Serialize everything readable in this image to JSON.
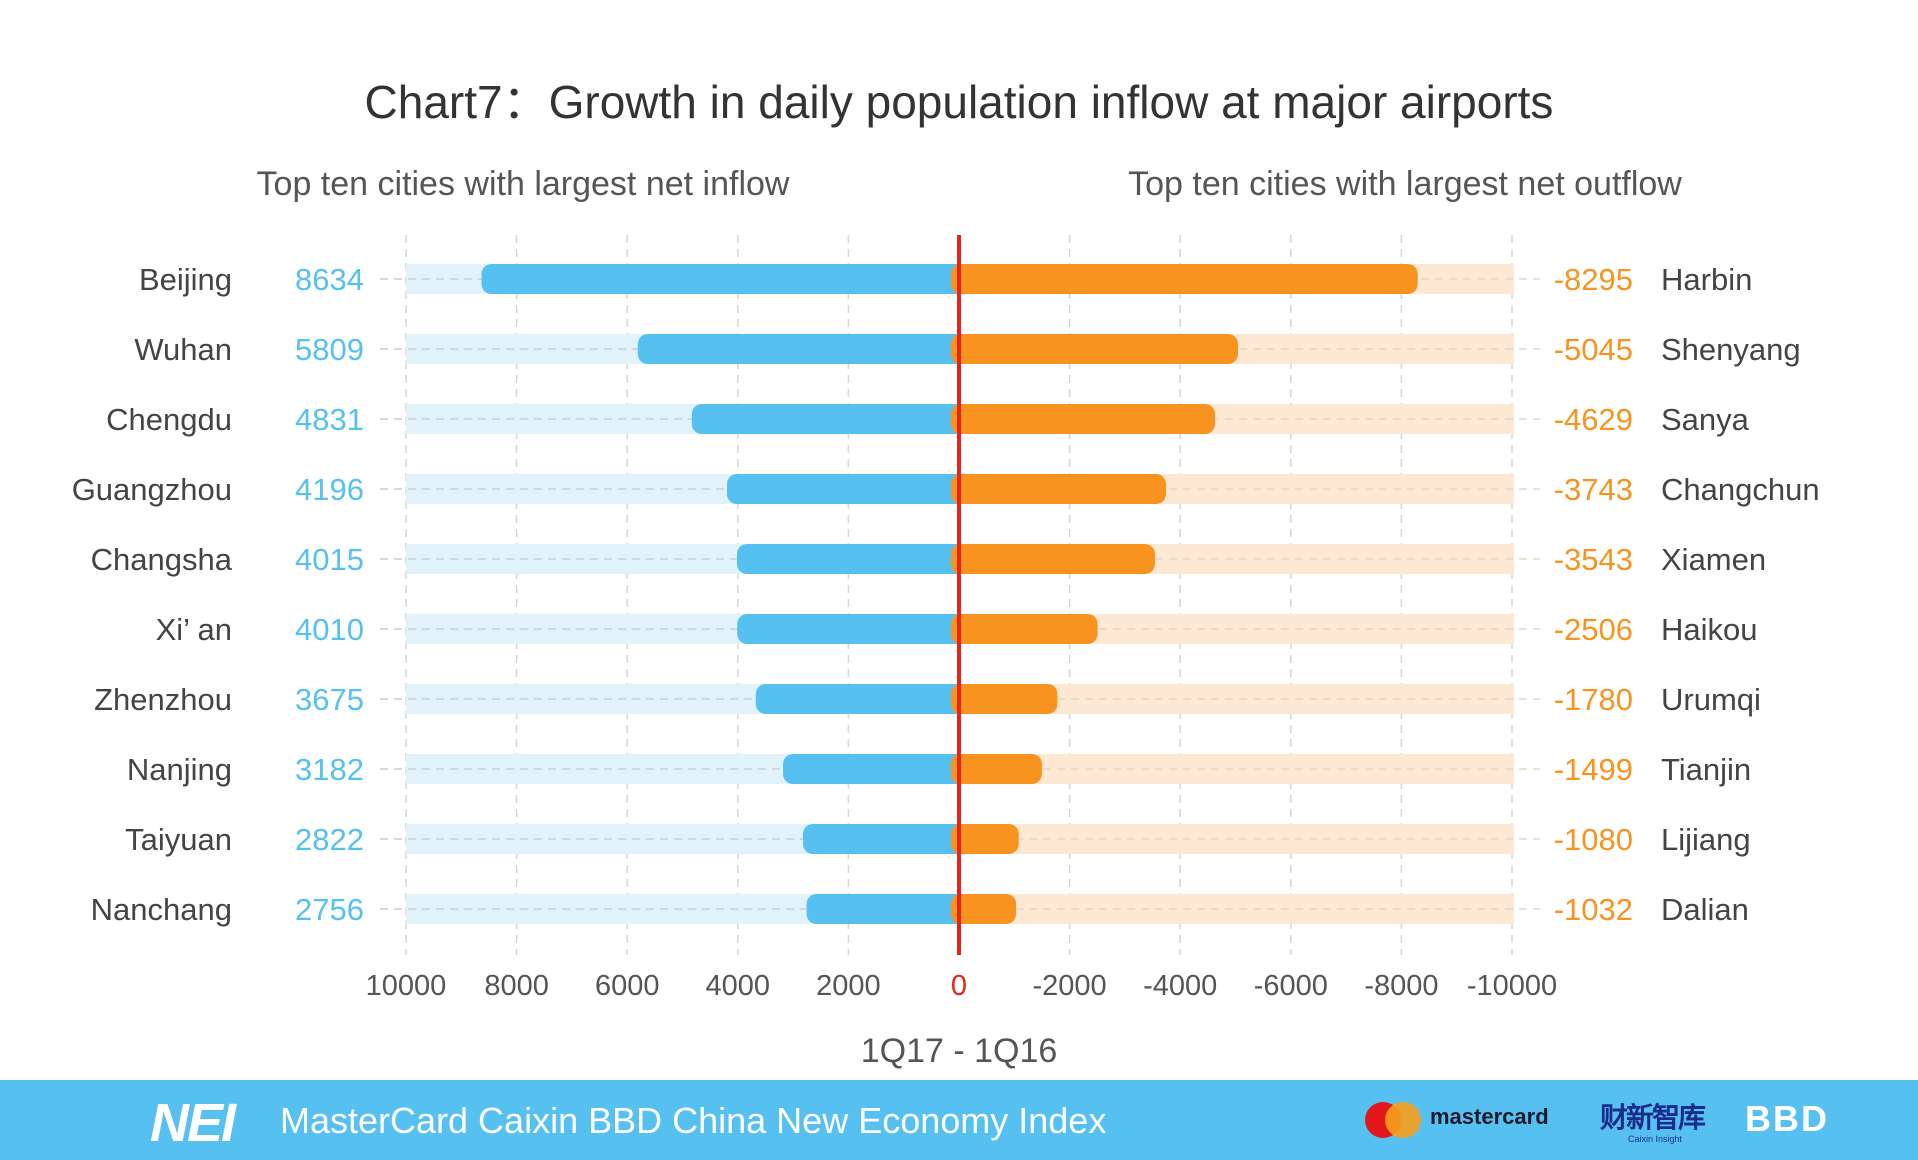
{
  "chart_data": {
    "type": "bar",
    "title": "Chart7：Growth in daily population inflow at major airports",
    "left_subtitle": "Top ten cities with largest net inflow",
    "right_subtitle": "Top ten cities with largest net outflow",
    "xlabel": "1Q17 - 1Q16",
    "xlim": [
      10000,
      -10000
    ],
    "x_ticks": [
      "10000",
      "8000",
      "6000",
      "4000",
      "2000",
      "0",
      "-2000",
      "-4000",
      "-6000",
      "-8000",
      "-10000"
    ],
    "grid": true,
    "inflow": {
      "categories": [
        "Beijing",
        "Wuhan",
        "Chengdu",
        "Guangzhou",
        "Changsha",
        "Xi’ an",
        "Zhenzhou",
        "Nanjing",
        "Taiyuan",
        "Nanchang"
      ],
      "values": [
        8634,
        5809,
        4831,
        4196,
        4015,
        4010,
        3675,
        3182,
        2822,
        2756
      ]
    },
    "outflow": {
      "categories": [
        "Harbin",
        "Shenyang",
        "Sanya",
        "Changchun",
        "Xiamen",
        "Haikou",
        "Urumqi",
        "Tianjin",
        "Lijiang",
        "Dalian"
      ],
      "values": [
        -8295,
        -5045,
        -4629,
        -3743,
        -3543,
        -2506,
        -1780,
        -1499,
        -1080,
        -1032
      ]
    },
    "colors": {
      "inflow": "#56c1f0",
      "inflow_bg": "#e1f2fb",
      "outflow": "#f7931e",
      "outflow_bg": "#fde9d3",
      "zero": "#e8231b",
      "text": "#444444"
    }
  },
  "footer": {
    "logo": "NEI",
    "title": "MasterCard Caixin BBD China New Economy Index",
    "mastercard": "mastercard",
    "caixin": "财新智库",
    "caixin_sub": "Caixin Insight",
    "bbd": "BBD"
  }
}
